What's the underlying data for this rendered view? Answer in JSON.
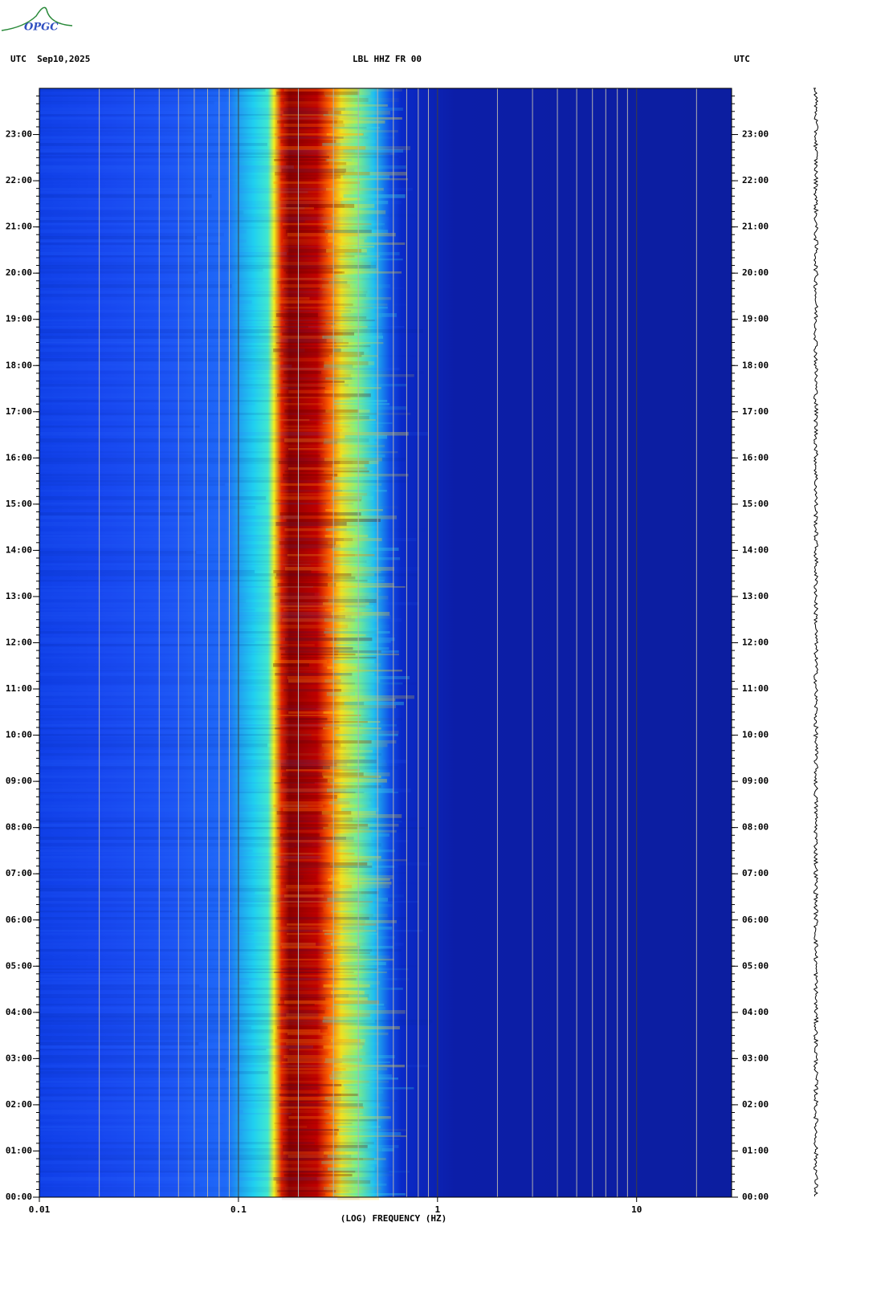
{
  "chart_data": {
    "type": "spectrogram",
    "logo": "OPGC",
    "date_label": "UTC  Sep10,2025",
    "title": "LBL HHZ FR 00",
    "timezone_label": "UTC",
    "x_label": "(LOG) FREQUENCY (HZ)",
    "xscale": "log",
    "xlim": [
      0.01,
      30
    ],
    "xticks": [
      0.01,
      0.1,
      1,
      10
    ],
    "ylim": [
      0,
      24
    ],
    "yticks": [
      {
        "value": 0,
        "label": "00:00"
      },
      {
        "value": 1,
        "label": "01:00"
      },
      {
        "value": 2,
        "label": "02:00"
      },
      {
        "value": 3,
        "label": "03:00"
      },
      {
        "value": 4,
        "label": "04:00"
      },
      {
        "value": 5,
        "label": "05:00"
      },
      {
        "value": 6,
        "label": "06:00"
      },
      {
        "value": 7,
        "label": "07:00"
      },
      {
        "value": 8,
        "label": "08:00"
      },
      {
        "value": 9,
        "label": "09:00"
      },
      {
        "value": 10,
        "label": "10:00"
      },
      {
        "value": 11,
        "label": "11:00"
      },
      {
        "value": 12,
        "label": "12:00"
      },
      {
        "value": 13,
        "label": "13:00"
      },
      {
        "value": 14,
        "label": "14:00"
      },
      {
        "value": 15,
        "label": "15:00"
      },
      {
        "value": 16,
        "label": "16:00"
      },
      {
        "value": 17,
        "label": "17:00"
      },
      {
        "value": 18,
        "label": "18:00"
      },
      {
        "value": 19,
        "label": "19:00"
      },
      {
        "value": 20,
        "label": "20:00"
      },
      {
        "value": 21,
        "label": "21:00"
      },
      {
        "value": 22,
        "label": "22:00"
      },
      {
        "value": 23,
        "label": "23:00"
      }
    ],
    "grid": true
  }
}
